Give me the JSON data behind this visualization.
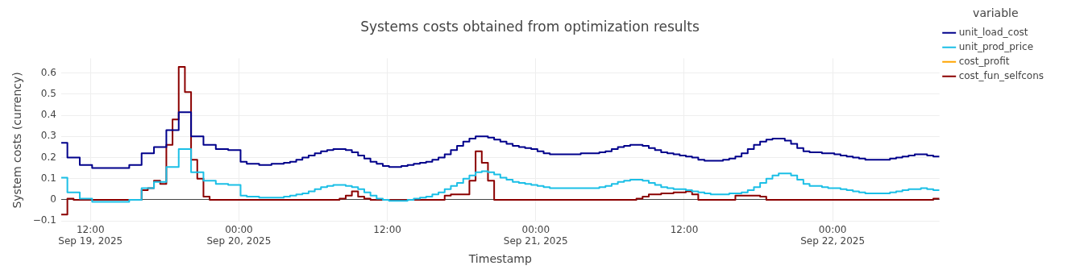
{
  "chart_data": {
    "type": "step",
    "title": "Systems costs obtained from optimization results",
    "xlabel": "Timestamp",
    "ylabel": "System costs (currency)",
    "legend_title": "variable",
    "x": [
      "2025-09-19T09:38",
      "2025-09-19T10:08",
      "2025-09-19T10:38",
      "2025-09-19T11:08",
      "2025-09-19T11:38",
      "2025-09-19T12:08",
      "2025-09-19T12:38",
      "2025-09-19T13:08",
      "2025-09-19T13:38",
      "2025-09-19T14:08",
      "2025-09-19T14:38",
      "2025-09-19T15:08",
      "2025-09-19T15:38",
      "2025-09-19T16:08",
      "2025-09-19T16:38",
      "2025-09-19T17:08",
      "2025-09-19T17:38",
      "2025-09-19T18:08",
      "2025-09-19T18:38",
      "2025-09-19T19:08",
      "2025-09-19T19:38",
      "2025-09-19T20:08",
      "2025-09-19T20:38",
      "2025-09-19T21:08",
      "2025-09-19T21:38",
      "2025-09-19T22:08",
      "2025-09-19T22:38",
      "2025-09-19T23:08",
      "2025-09-19T23:38",
      "2025-09-20T00:08",
      "2025-09-20T00:38",
      "2025-09-20T01:08",
      "2025-09-20T01:38",
      "2025-09-20T02:08",
      "2025-09-20T02:38",
      "2025-09-20T03:08",
      "2025-09-20T03:38",
      "2025-09-20T04:08",
      "2025-09-20T04:38",
      "2025-09-20T05:08",
      "2025-09-20T05:38",
      "2025-09-20T06:08",
      "2025-09-20T06:38",
      "2025-09-20T07:08",
      "2025-09-20T07:38",
      "2025-09-20T08:08",
      "2025-09-20T08:38",
      "2025-09-20T09:08",
      "2025-09-20T09:38",
      "2025-09-20T10:08",
      "2025-09-20T10:38",
      "2025-09-20T11:08",
      "2025-09-20T11:38",
      "2025-09-20T12:08",
      "2025-09-20T12:38",
      "2025-09-20T13:08",
      "2025-09-20T13:38",
      "2025-09-20T14:08",
      "2025-09-20T14:38",
      "2025-09-20T15:08",
      "2025-09-20T15:38",
      "2025-09-20T16:08",
      "2025-09-20T16:38",
      "2025-09-20T17:08",
      "2025-09-20T17:38",
      "2025-09-20T18:08",
      "2025-09-20T18:38",
      "2025-09-20T19:08",
      "2025-09-20T19:38",
      "2025-09-20T20:08",
      "2025-09-20T20:38",
      "2025-09-20T21:08",
      "2025-09-20T21:38",
      "2025-09-20T22:08",
      "2025-09-20T22:38",
      "2025-09-20T23:08",
      "2025-09-20T23:38",
      "2025-09-21T00:08",
      "2025-09-21T00:38",
      "2025-09-21T01:08",
      "2025-09-21T01:38",
      "2025-09-21T02:08",
      "2025-09-21T02:38",
      "2025-09-21T03:08",
      "2025-09-21T03:38",
      "2025-09-21T04:08",
      "2025-09-21T04:38",
      "2025-09-21T05:08",
      "2025-09-21T05:38",
      "2025-09-21T06:08",
      "2025-09-21T06:38",
      "2025-09-21T07:08",
      "2025-09-21T07:38",
      "2025-09-21T08:08",
      "2025-09-21T08:38",
      "2025-09-21T09:08",
      "2025-09-21T09:38",
      "2025-09-21T10:08",
      "2025-09-21T10:38",
      "2025-09-21T11:08",
      "2025-09-21T11:38",
      "2025-09-21T12:08",
      "2025-09-21T12:38",
      "2025-09-21T13:08",
      "2025-09-21T13:38",
      "2025-09-21T14:08",
      "2025-09-21T14:38",
      "2025-09-21T15:08",
      "2025-09-21T15:38",
      "2025-09-21T16:08",
      "2025-09-21T16:38",
      "2025-09-21T17:08",
      "2025-09-21T17:38",
      "2025-09-21T18:08",
      "2025-09-21T18:38",
      "2025-09-21T19:08",
      "2025-09-21T19:38",
      "2025-09-21T20:08",
      "2025-09-21T20:38",
      "2025-09-21T21:08",
      "2025-09-21T21:38",
      "2025-09-21T22:08",
      "2025-09-21T22:38",
      "2025-09-21T23:08",
      "2025-09-21T23:38",
      "2025-09-22T00:08",
      "2025-09-22T00:38",
      "2025-09-22T01:08",
      "2025-09-22T01:38",
      "2025-09-22T02:08",
      "2025-09-22T02:38",
      "2025-09-22T03:08",
      "2025-09-22T03:38",
      "2025-09-22T04:08",
      "2025-09-22T04:38",
      "2025-09-22T05:08",
      "2025-09-22T05:38",
      "2025-09-22T06:08",
      "2025-09-22T06:38",
      "2025-09-22T07:08",
      "2025-09-22T07:38",
      "2025-09-22T08:08",
      "2025-09-22T08:38"
    ],
    "series": [
      {
        "name": "unit_load_cost",
        "color": "#00008b",
        "values": [
          0.27,
          0.2,
          0.2,
          0.165,
          0.165,
          0.15,
          0.15,
          0.15,
          0.15,
          0.15,
          0.15,
          0.165,
          0.165,
          0.22,
          0.22,
          0.25,
          0.25,
          0.33,
          0.33,
          0.415,
          0.415,
          0.3,
          0.3,
          0.26,
          0.26,
          0.24,
          0.24,
          0.235,
          0.235,
          0.18,
          0.17,
          0.17,
          0.165,
          0.165,
          0.17,
          0.17,
          0.175,
          0.18,
          0.19,
          0.2,
          0.21,
          0.22,
          0.23,
          0.235,
          0.24,
          0.24,
          0.235,
          0.225,
          0.21,
          0.195,
          0.18,
          0.17,
          0.16,
          0.155,
          0.155,
          0.16,
          0.165,
          0.17,
          0.175,
          0.18,
          0.19,
          0.2,
          0.215,
          0.235,
          0.255,
          0.275,
          0.29,
          0.3,
          0.3,
          0.295,
          0.285,
          0.275,
          0.265,
          0.255,
          0.25,
          0.245,
          0.24,
          0.23,
          0.22,
          0.215,
          0.215,
          0.215,
          0.215,
          0.215,
          0.22,
          0.22,
          0.22,
          0.225,
          0.23,
          0.24,
          0.25,
          0.255,
          0.26,
          0.26,
          0.255,
          0.245,
          0.235,
          0.225,
          0.22,
          0.215,
          0.21,
          0.205,
          0.2,
          0.19,
          0.185,
          0.185,
          0.185,
          0.19,
          0.195,
          0.205,
          0.22,
          0.24,
          0.26,
          0.275,
          0.285,
          0.29,
          0.29,
          0.28,
          0.265,
          0.245,
          0.23,
          0.225,
          0.225,
          0.22,
          0.22,
          0.215,
          0.21,
          0.205,
          0.2,
          0.195,
          0.19,
          0.19,
          0.19,
          0.19,
          0.195,
          0.2,
          0.205,
          0.21,
          0.215,
          0.215,
          0.21,
          0.205,
          0.205
        ]
      },
      {
        "name": "unit_prod_price",
        "color": "#1bbfe6",
        "values": [
          0.105,
          0.035,
          0.035,
          0.005,
          0.005,
          -0.01,
          -0.01,
          -0.01,
          -0.01,
          -0.01,
          -0.01,
          0,
          0,
          0.055,
          0.055,
          0.085,
          0.085,
          0.155,
          0.155,
          0.24,
          0.24,
          0.13,
          0.13,
          0.09,
          0.09,
          0.075,
          0.075,
          0.07,
          0.07,
          0.02,
          0.015,
          0.015,
          0.01,
          0.01,
          0.01,
          0.01,
          0.015,
          0.02,
          0.025,
          0.03,
          0.04,
          0.05,
          0.06,
          0.065,
          0.07,
          0.07,
          0.065,
          0.06,
          0.05,
          0.035,
          0.02,
          0.005,
          0,
          -0.005,
          -0.005,
          -0.005,
          0,
          0.005,
          0.01,
          0.015,
          0.025,
          0.035,
          0.05,
          0.065,
          0.08,
          0.1,
          0.115,
          0.13,
          0.135,
          0.13,
          0.12,
          0.105,
          0.095,
          0.085,
          0.08,
          0.075,
          0.07,
          0.065,
          0.06,
          0.055,
          0.055,
          0.055,
          0.055,
          0.055,
          0.055,
          0.055,
          0.055,
          0.06,
          0.065,
          0.075,
          0.085,
          0.09,
          0.095,
          0.095,
          0.09,
          0.08,
          0.07,
          0.06,
          0.055,
          0.05,
          0.05,
          0.045,
          0.04,
          0.035,
          0.03,
          0.025,
          0.025,
          0.025,
          0.03,
          0.03,
          0.035,
          0.045,
          0.06,
          0.08,
          0.1,
          0.115,
          0.125,
          0.125,
          0.115,
          0.095,
          0.075,
          0.065,
          0.065,
          0.06,
          0.055,
          0.055,
          0.05,
          0.045,
          0.04,
          0.035,
          0.03,
          0.03,
          0.03,
          0.03,
          0.035,
          0.04,
          0.045,
          0.05,
          0.05,
          0.055,
          0.05,
          0.045,
          0.045
        ]
      },
      {
        "name": "cost_profit",
        "color": "#ffa500",
        "values": [
          null,
          null,
          null,
          null,
          null,
          null,
          null,
          null,
          null,
          null,
          null,
          null,
          null,
          null,
          null,
          null,
          null,
          null,
          null,
          null,
          null,
          null,
          null,
          null,
          null,
          null,
          null,
          null,
          null,
          null,
          null,
          null,
          null,
          null,
          null,
          null,
          null,
          null,
          null,
          null,
          null,
          null,
          null,
          null,
          null,
          null,
          null,
          null,
          null,
          null,
          null,
          null,
          null,
          null,
          null,
          null,
          null,
          null,
          null,
          null,
          null,
          null,
          null,
          null,
          null,
          null,
          null,
          null,
          null,
          null,
          null,
          null,
          null,
          null,
          null,
          null,
          null,
          null,
          null,
          null,
          null,
          null,
          null,
          null,
          null,
          null,
          null,
          null,
          null,
          null,
          null,
          null,
          null,
          null,
          null,
          null,
          null,
          null,
          null,
          null,
          null,
          null,
          null,
          null,
          null,
          null,
          null,
          null,
          null,
          null,
          null,
          null,
          null,
          null,
          null,
          null,
          null,
          null,
          null,
          null,
          null,
          null,
          null,
          null,
          null,
          null,
          null,
          null,
          null,
          null,
          null,
          null,
          null,
          null,
          null,
          null,
          null,
          null,
          null,
          null,
          null,
          null,
          null
        ]
      },
      {
        "name": "cost_fun_selfcons",
        "color": "#8b0000",
        "values": [
          -0.07,
          0.005,
          0,
          0,
          0,
          0,
          0,
          0,
          0,
          0,
          0,
          0,
          0,
          0.045,
          0.055,
          0.09,
          0.075,
          0.26,
          0.38,
          0.63,
          0.51,
          0.19,
          0.1,
          0.015,
          0,
          0,
          0,
          0,
          0,
          0,
          0,
          0,
          0,
          0,
          0,
          0,
          0,
          0,
          0,
          0,
          0,
          0,
          0,
          0,
          0,
          0.005,
          0.02,
          0.04,
          0.015,
          0.005,
          0,
          0,
          0,
          0,
          0,
          0,
          0,
          0,
          0,
          0,
          0,
          0,
          0.02,
          0.025,
          0.025,
          0.025,
          0.09,
          0.23,
          0.175,
          0.09,
          0,
          0,
          0,
          0,
          0,
          0,
          0,
          0,
          0,
          0,
          0,
          0,
          0,
          0,
          0,
          0,
          0,
          0,
          0,
          0,
          0,
          0,
          0,
          0.005,
          0.015,
          0.025,
          0.025,
          0.03,
          0.03,
          0.035,
          0.035,
          0.04,
          0.025,
          0,
          0,
          0,
          0,
          0,
          0,
          0.02,
          0.02,
          0.02,
          0.02,
          0.015,
          0,
          0,
          0,
          0,
          0,
          0,
          0,
          0,
          0,
          0,
          0,
          0,
          0,
          0,
          0,
          0,
          0,
          0,
          0,
          0,
          0,
          0,
          0,
          0,
          0,
          0,
          0,
          0.005,
          0.005
        ]
      }
    ],
    "xlim": [
      "2025-09-19T09:38",
      "2025-09-22T08:38"
    ],
    "xticks": [
      {
        "value": "2025-09-19T12:00",
        "label": "12:00\nSep 19, 2025"
      },
      {
        "value": "2025-09-20T00:00",
        "label": "00:00\nSep 20, 2025"
      },
      {
        "value": "2025-09-20T12:00",
        "label": "12:00"
      },
      {
        "value": "2025-09-21T00:00",
        "label": "00:00\nSep 21, 2025"
      },
      {
        "value": "2025-09-21T12:00",
        "label": "12:00"
      },
      {
        "value": "2025-09-22T00:00",
        "label": "00:00\nSep 22, 2025"
      }
    ],
    "ylim": [
      -0.105,
      0.67
    ],
    "yticks": [
      {
        "value": -0.1,
        "label": "−0.1"
      },
      0,
      0.1,
      0.2,
      0.3,
      0.4,
      0.5,
      0.6
    ],
    "grid": true,
    "legend": "top right"
  }
}
